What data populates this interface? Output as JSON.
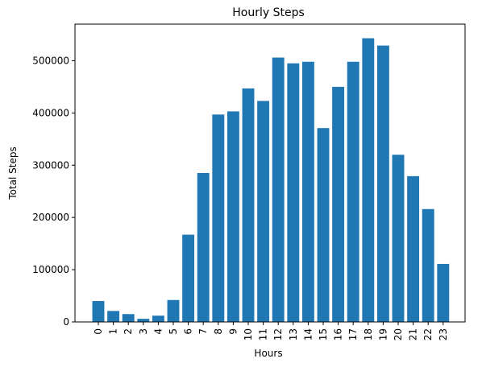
{
  "chart_data": {
    "type": "bar",
    "title": "Hourly Steps",
    "xlabel": "Hours",
    "ylabel": "Total Steps",
    "categories": [
      "0",
      "1",
      "2",
      "3",
      "4",
      "5",
      "6",
      "7",
      "8",
      "9",
      "10",
      "11",
      "12",
      "13",
      "14",
      "15",
      "16",
      "17",
      "18",
      "19",
      "20",
      "21",
      "22",
      "23"
    ],
    "values": [
      40000,
      21000,
      15000,
      6000,
      12000,
      42000,
      167000,
      285000,
      397000,
      403000,
      447000,
      423000,
      506000,
      495000,
      498000,
      371000,
      450000,
      498000,
      543000,
      529000,
      320000,
      279000,
      216000,
      111000
    ],
    "ylim": [
      0,
      570000
    ],
    "yticks": [
      0,
      100000,
      200000,
      300000,
      400000,
      500000
    ],
    "ytick_labels": [
      "0",
      "100000",
      "200000",
      "300000",
      "400000",
      "500000"
    ],
    "bar_color": "#1f77b4",
    "grid": false,
    "legend": "none"
  }
}
